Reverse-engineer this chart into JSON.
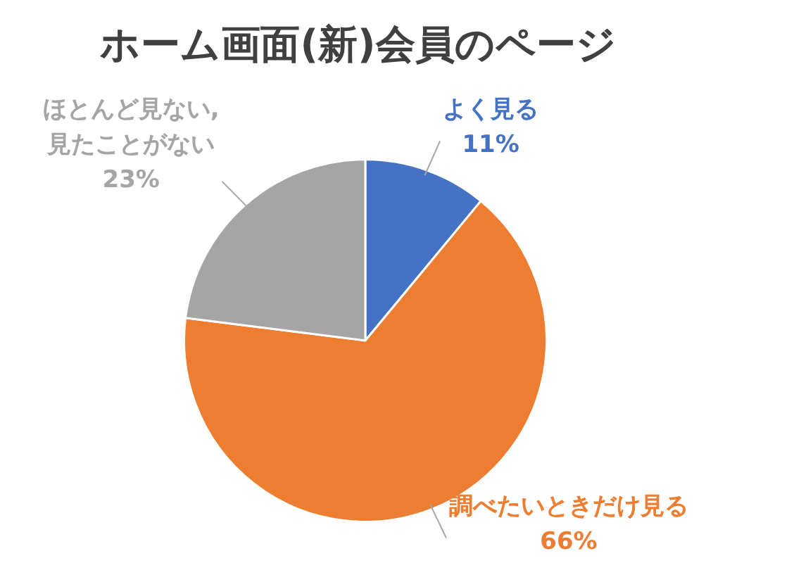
{
  "chart_data": {
    "type": "pie",
    "title": "ホーム画面(新)会員のページ",
    "categories": [
      "よく見る",
      "調べたいときだけ見る",
      "ほとんど見ない,\n見たことがない"
    ],
    "values": [
      11,
      66,
      23
    ],
    "colors": [
      "#4472c4",
      "#ed7d31",
      "#a5a5a5"
    ],
    "value_labels": [
      "11%",
      "66%",
      "23%"
    ]
  }
}
